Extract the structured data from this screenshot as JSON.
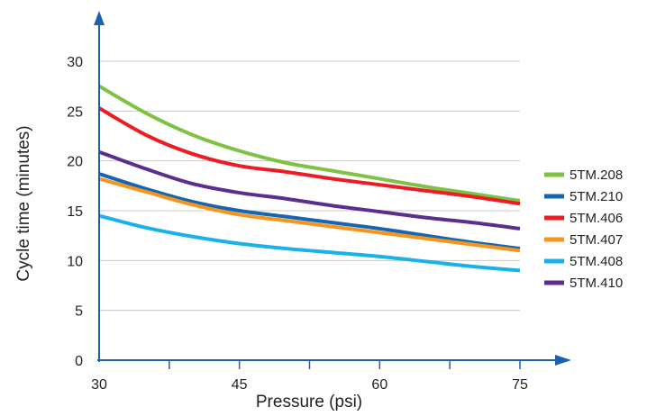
{
  "chart_data": {
    "type": "line",
    "xlabel": "Pressure (psi)",
    "ylabel": "Cycle time (minutes)",
    "xlim": [
      30,
      75
    ],
    "ylim": [
      0,
      30
    ],
    "x_ticks": [
      30,
      45,
      60,
      75
    ],
    "y_ticks": [
      0,
      5,
      10,
      15,
      20,
      25,
      30
    ],
    "grid": "horizontal",
    "legend": "right",
    "colors": {
      "axis": "#1d60b0",
      "grid": "#c8c8c8",
      "text": "#231f20"
    },
    "x": [
      30,
      35,
      40,
      45,
      50,
      55,
      60,
      65,
      70,
      75
    ],
    "series": [
      {
        "name": "5TM.208",
        "color": "#7dc242",
        "values": [
          27.5,
          24.8,
          22.6,
          21.0,
          19.8,
          19.0,
          18.2,
          17.4,
          16.7,
          16.0
        ]
      },
      {
        "name": "5TM.210",
        "color": "#1565b0",
        "values": [
          18.7,
          17.2,
          15.9,
          15.0,
          14.4,
          13.8,
          13.2,
          12.5,
          11.8,
          11.2
        ]
      },
      {
        "name": "5TM.406",
        "color": "#ed1c24",
        "values": [
          25.3,
          22.6,
          20.7,
          19.5,
          18.9,
          18.2,
          17.6,
          17.0,
          16.4,
          15.7
        ]
      },
      {
        "name": "5TM.407",
        "color": "#f7941d",
        "values": [
          18.2,
          16.9,
          15.6,
          14.6,
          14.0,
          13.4,
          12.8,
          12.2,
          11.6,
          11.0
        ]
      },
      {
        "name": "5TM.408",
        "color": "#1ab0ec",
        "values": [
          14.5,
          13.3,
          12.4,
          11.7,
          11.2,
          10.8,
          10.4,
          9.9,
          9.4,
          9.0
        ]
      },
      {
        "name": "5TM.410",
        "color": "#5b2d8e",
        "values": [
          20.9,
          19.2,
          17.7,
          16.8,
          16.2,
          15.5,
          14.9,
          14.3,
          13.8,
          13.2
        ]
      }
    ]
  }
}
